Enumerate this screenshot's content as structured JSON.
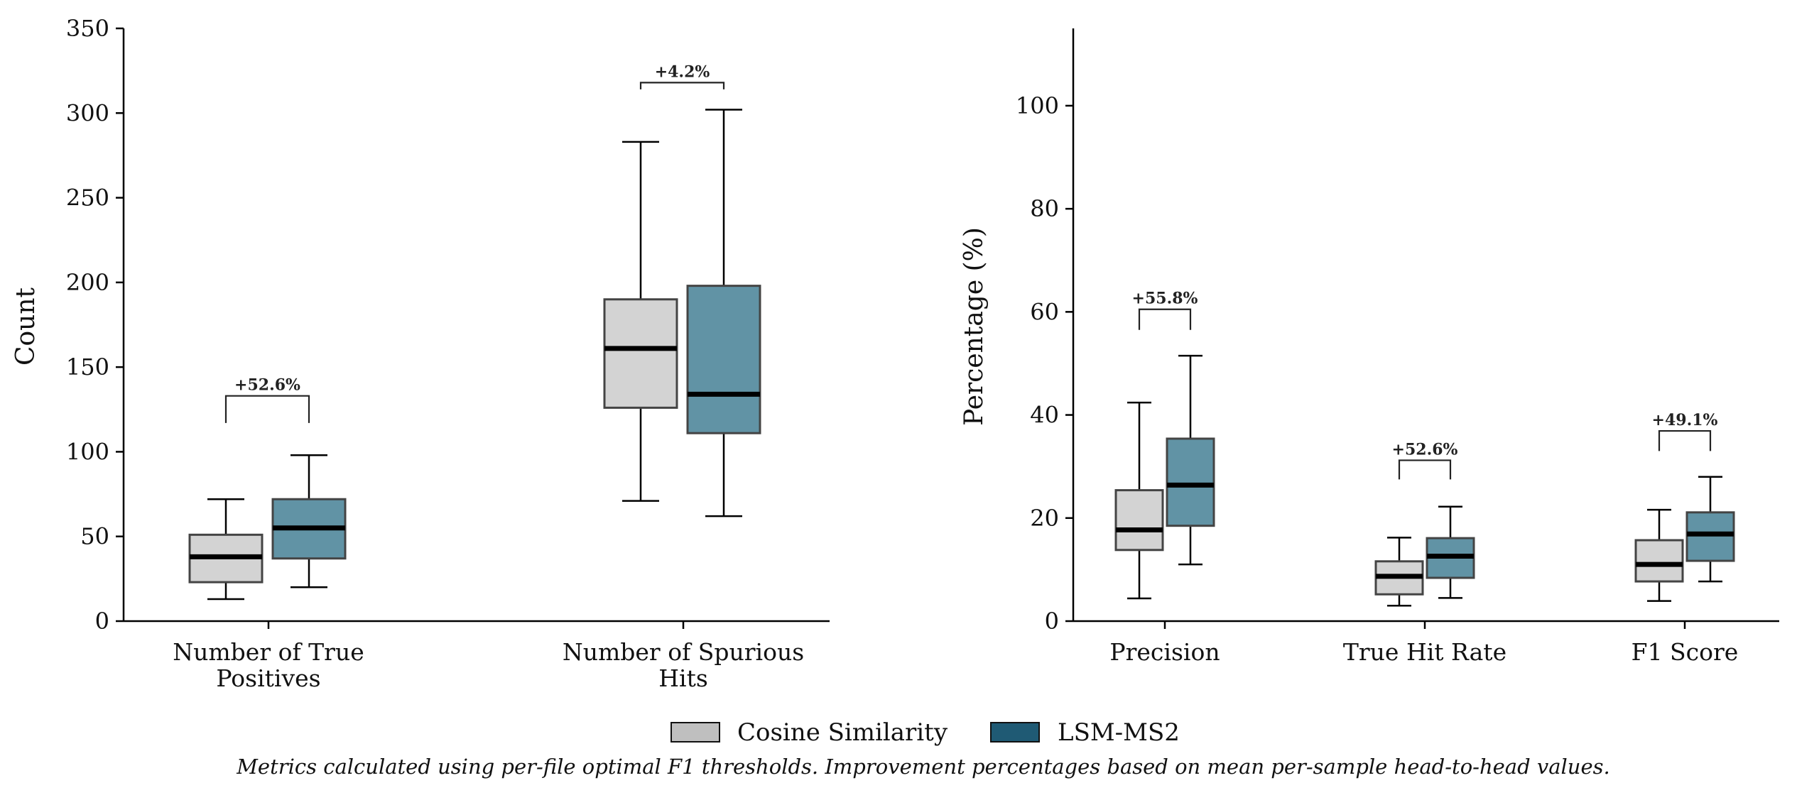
{
  "chart_data": [
    {
      "type": "box",
      "panel": "left",
      "title": "",
      "xlabel": "",
      "ylabel": "Count",
      "ylim": [
        0,
        350
      ],
      "yticks": [
        0,
        50,
        100,
        150,
        200,
        250,
        300,
        350
      ],
      "categories": [
        {
          "label_lines": [
            "Number of True",
            "Positives"
          ]
        },
        {
          "label_lines": [
            "Number of Spurious",
            "Hits"
          ]
        }
      ],
      "series": [
        {
          "name": "Cosine Similarity",
          "boxes": [
            {
              "whisker_low": 13,
              "q1": 23,
              "median": 38,
              "q3": 51,
              "whisker_high": 72
            },
            {
              "whisker_low": 71,
              "q1": 126,
              "median": 161,
              "q3": 190,
              "whisker_high": 283
            }
          ]
        },
        {
          "name": "LSM-MS2",
          "boxes": [
            {
              "whisker_low": 20,
              "q1": 37,
              "median": 55,
              "q3": 72,
              "whisker_high": 98
            },
            {
              "whisker_low": 62,
              "q1": 111,
              "median": 134,
              "q3": 198,
              "whisker_high": 302
            }
          ]
        }
      ],
      "annotations": [
        {
          "category": 0,
          "text": "+52.6%",
          "bracket_y": 133,
          "bracket_bottom": 117
        },
        {
          "category": 1,
          "text": "+4.2%",
          "bracket_y": 318,
          "bracket_bottom": 314
        }
      ]
    },
    {
      "type": "box",
      "panel": "right",
      "title": "",
      "xlabel": "",
      "ylabel": "Percentage (%)",
      "ylim": [
        0,
        115
      ],
      "yticks": [
        0,
        20,
        40,
        60,
        80,
        100
      ],
      "categories": [
        {
          "label_lines": [
            "Precision"
          ]
        },
        {
          "label_lines": [
            "True Hit Rate"
          ]
        },
        {
          "label_lines": [
            "F1 Score"
          ]
        }
      ],
      "series": [
        {
          "name": "Cosine Similarity",
          "boxes": [
            {
              "whisker_low": 4.4,
              "q1": 13.8,
              "median": 17.7,
              "q3": 25.4,
              "whisker_high": 42.4
            },
            {
              "whisker_low": 3.0,
              "q1": 5.2,
              "median": 8.7,
              "q3": 11.6,
              "whisker_high": 16.2
            },
            {
              "whisker_low": 3.9,
              "q1": 7.7,
              "median": 11.0,
              "q3": 15.7,
              "whisker_high": 21.6
            }
          ]
        },
        {
          "name": "LSM-MS2",
          "boxes": [
            {
              "whisker_low": 11.0,
              "q1": 18.5,
              "median": 26.4,
              "q3": 35.4,
              "whisker_high": 51.5
            },
            {
              "whisker_low": 4.5,
              "q1": 8.4,
              "median": 12.6,
              "q3": 16.1,
              "whisker_high": 22.2
            },
            {
              "whisker_low": 7.7,
              "q1": 11.7,
              "median": 16.9,
              "q3": 21.1,
              "whisker_high": 28.0
            }
          ]
        }
      ],
      "annotations": [
        {
          "category": 0,
          "text": "+55.8%",
          "bracket_y": 60.5,
          "bracket_bottom": 56.5
        },
        {
          "category": 1,
          "text": "+52.6%",
          "bracket_y": 31.2,
          "bracket_bottom": 27.5
        },
        {
          "category": 2,
          "text": "+49.1%",
          "bracket_y": 36.9,
          "bracket_bottom": 33.0
        }
      ]
    }
  ],
  "legend": {
    "placement": "bottom-center",
    "items": [
      {
        "label": "Cosine Similarity",
        "color": "#bfbfbf"
      },
      {
        "label": "LSM-MS2",
        "color": "#1f5a74"
      }
    ]
  },
  "colors": {
    "cosine_box": "#d3d3d3",
    "lsm_box": "#6193a5",
    "box_edge": "#444444",
    "median": "#000000"
  },
  "caption": "Metrics calculated using per-file optimal F1 thresholds. Improvement percentages based on mean per-sample head-to-head values."
}
